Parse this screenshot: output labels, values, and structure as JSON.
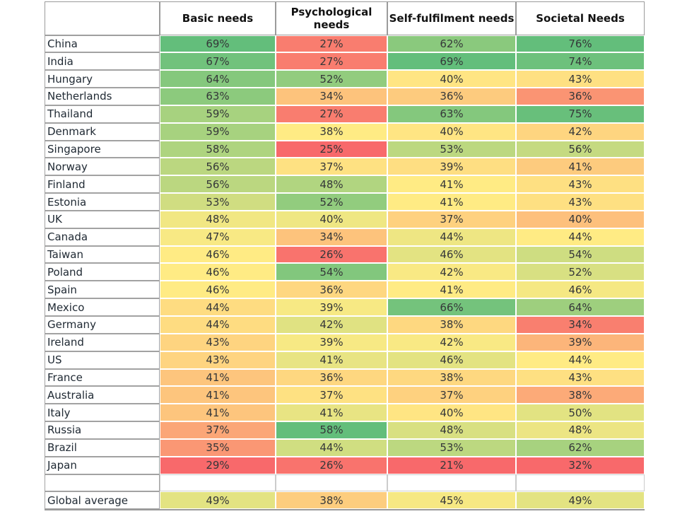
{
  "chart_data": {
    "type": "heatmap",
    "title": "",
    "corner_label": "",
    "columns": [
      "Basic needs",
      "Psychological needs",
      "Self-fulfilment needs",
      "Societal Needs"
    ],
    "value_suffix": "%",
    "rows": [
      {
        "label": "China",
        "values": [
          69,
          27,
          62,
          76
        ]
      },
      {
        "label": "India",
        "values": [
          67,
          27,
          69,
          74
        ]
      },
      {
        "label": "Hungary",
        "values": [
          64,
          52,
          40,
          43
        ]
      },
      {
        "label": "Netherlands",
        "values": [
          63,
          34,
          36,
          36
        ]
      },
      {
        "label": "Thailand",
        "values": [
          59,
          27,
          63,
          75
        ]
      },
      {
        "label": "Denmark",
        "values": [
          59,
          38,
          40,
          42
        ]
      },
      {
        "label": "Singapore",
        "values": [
          58,
          25,
          53,
          56
        ]
      },
      {
        "label": "Norway",
        "values": [
          56,
          37,
          39,
          41
        ]
      },
      {
        "label": "Finland",
        "values": [
          56,
          48,
          41,
          43
        ]
      },
      {
        "label": "Estonia",
        "values": [
          53,
          52,
          41,
          43
        ]
      },
      {
        "label": "UK",
        "values": [
          48,
          40,
          37,
          40
        ]
      },
      {
        "label": "Canada",
        "values": [
          47,
          34,
          44,
          44
        ]
      },
      {
        "label": "Taiwan",
        "values": [
          46,
          26,
          46,
          54
        ]
      },
      {
        "label": "Poland",
        "values": [
          46,
          54,
          42,
          52
        ]
      },
      {
        "label": "Spain",
        "values": [
          46,
          36,
          41,
          46
        ]
      },
      {
        "label": "Mexico",
        "values": [
          44,
          39,
          66,
          64
        ]
      },
      {
        "label": "Germany",
        "values": [
          44,
          42,
          38,
          34
        ]
      },
      {
        "label": "Ireland",
        "values": [
          43,
          39,
          42,
          39
        ]
      },
      {
        "label": "US",
        "values": [
          43,
          41,
          46,
          44
        ]
      },
      {
        "label": "France",
        "values": [
          41,
          36,
          38,
          43
        ]
      },
      {
        "label": "Australia",
        "values": [
          41,
          37,
          37,
          38
        ]
      },
      {
        "label": "Italy",
        "values": [
          41,
          41,
          40,
          50
        ]
      },
      {
        "label": "Russia",
        "values": [
          37,
          58,
          48,
          48
        ]
      },
      {
        "label": "Brazil",
        "values": [
          35,
          44,
          53,
          62
        ]
      },
      {
        "label": "Japan",
        "values": [
          29,
          26,
          21,
          32
        ]
      }
    ],
    "footer": {
      "label": "Global average",
      "values": [
        49,
        38,
        45,
        49
      ]
    },
    "colorscale": {
      "low_color": "#F8696B",
      "mid_color": "#FFEB84",
      "high_color": "#63BE7B",
      "mode": "3-color scale per column (min / median / max); footer row scaled against all values"
    },
    "layout": {
      "grid": "white gaps between colored cells, gray bordered label cells",
      "legend": "none"
    }
  }
}
